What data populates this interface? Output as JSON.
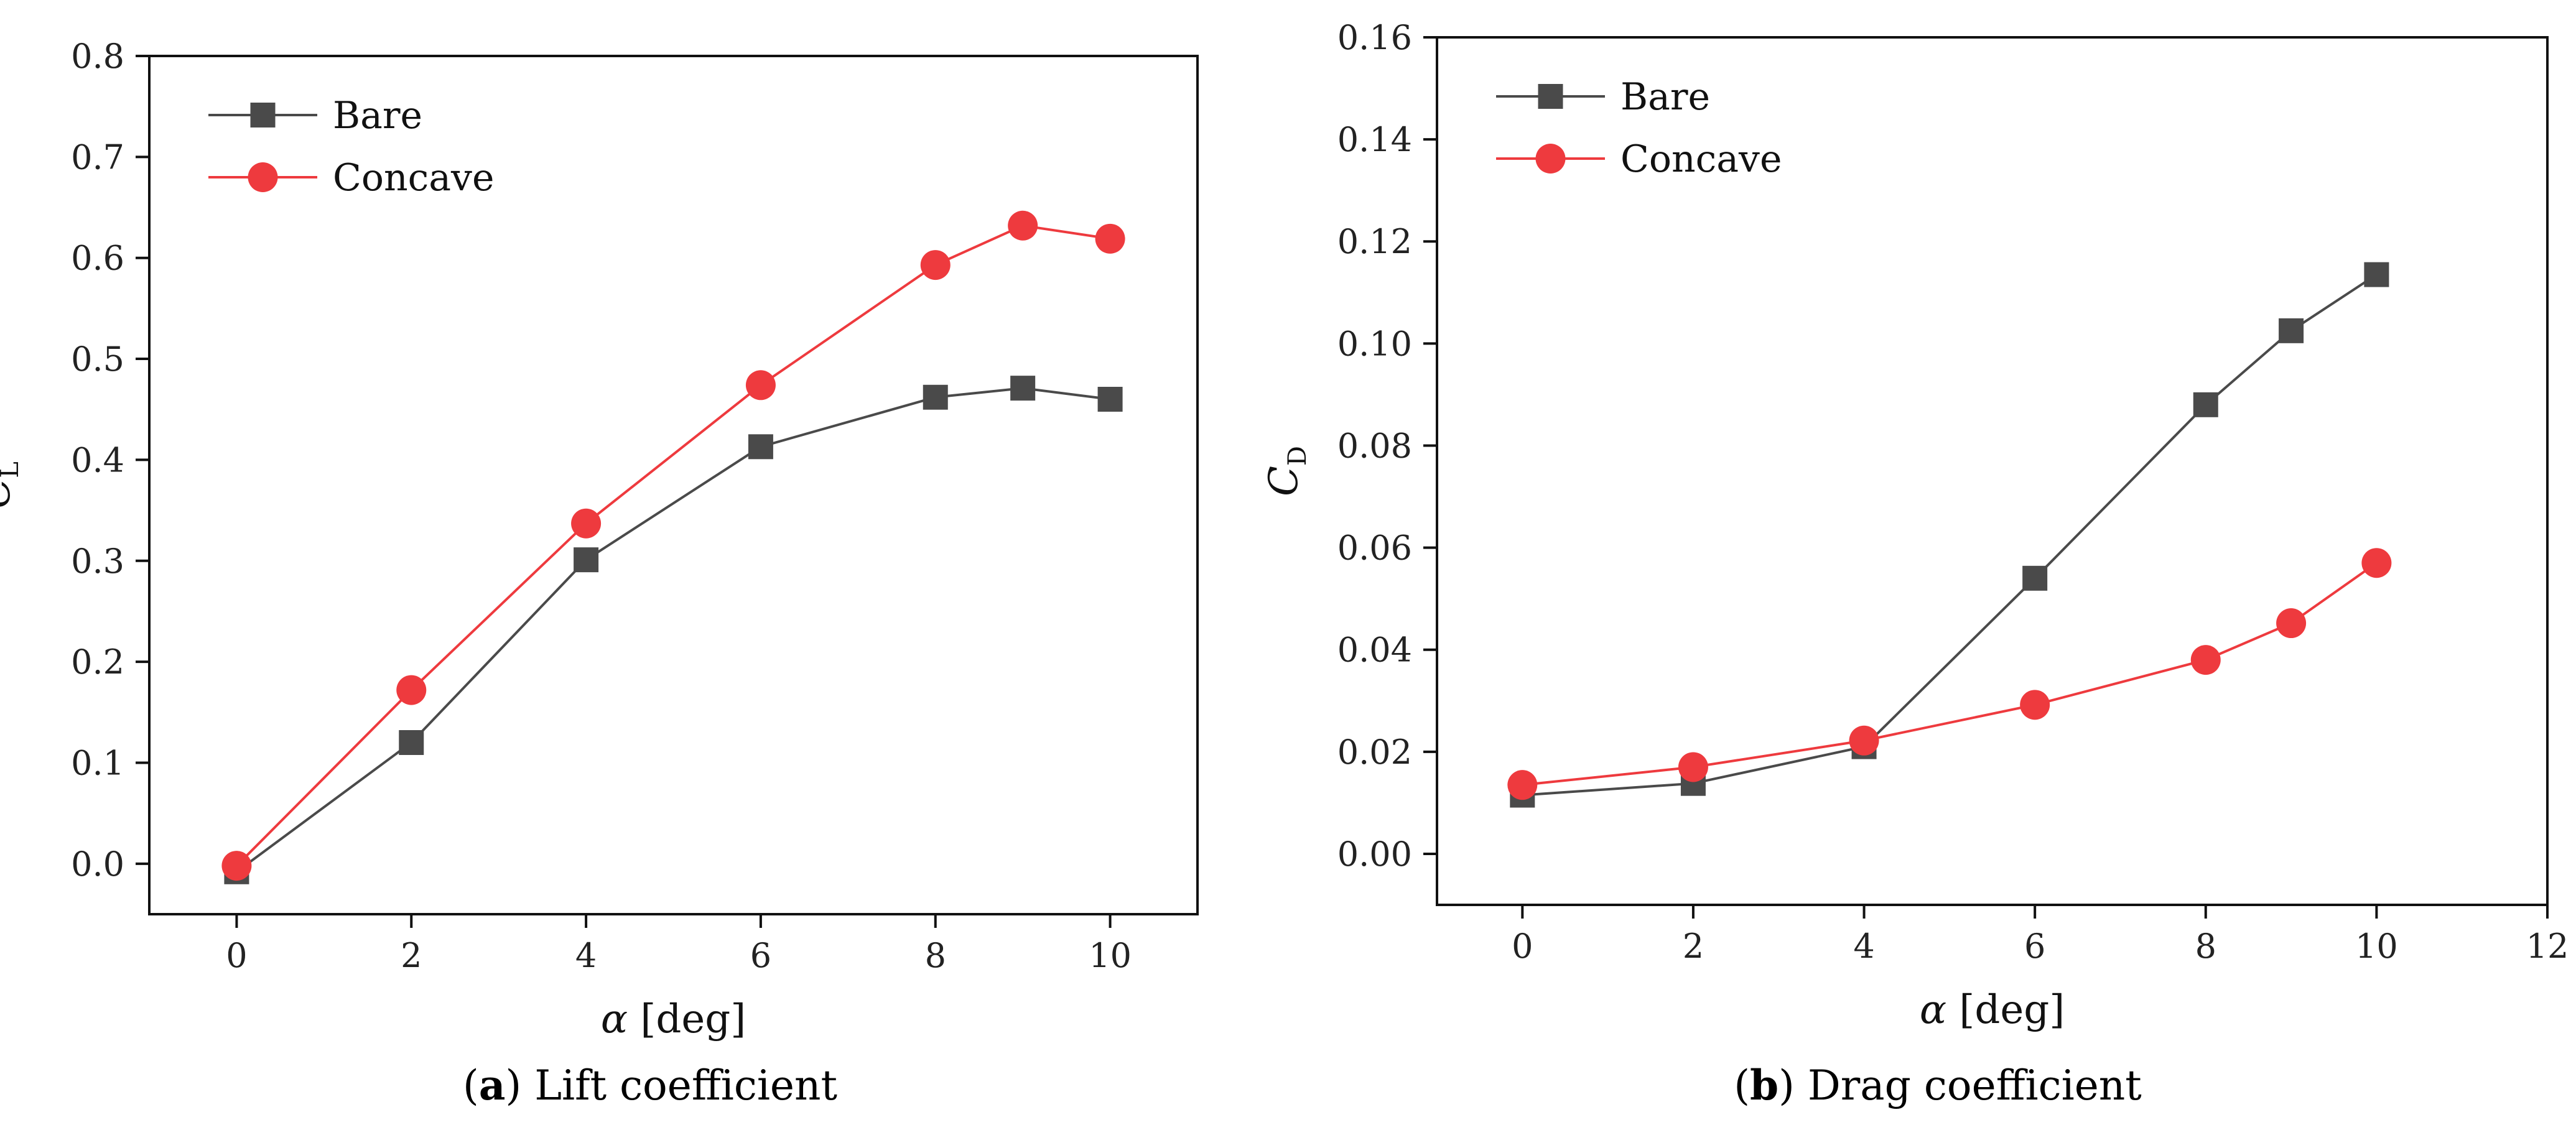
{
  "chart_data": [
    {
      "type": "line",
      "panel": "a",
      "title": "Lift coefficient",
      "caption_letter": "a",
      "caption_text": " Lift coefficient",
      "xlabel_symbol": "α",
      "xlabel_unit": " [deg]",
      "ylabel_main": "C",
      "ylabel_sub": "L",
      "xlim": [
        -1,
        11
      ],
      "ylim": [
        -0.05,
        0.8
      ],
      "xticks": [
        0,
        2,
        4,
        6,
        8,
        10
      ],
      "xtick_labels": [
        "0",
        "2",
        "4",
        "6",
        "8",
        "10"
      ],
      "yticks": [
        0.0,
        0.1,
        0.2,
        0.3,
        0.4,
        0.5,
        0.6,
        0.7,
        0.8
      ],
      "ytick_labels": [
        "0.0",
        "0.1",
        "0.2",
        "0.3",
        "0.4",
        "0.5",
        "0.6",
        "0.7",
        "0.8"
      ],
      "legend_position": "top-left",
      "series": [
        {
          "name": "Bare",
          "color": "#4a4a4a",
          "marker": "square",
          "x": [
            0,
            2,
            4,
            6,
            8,
            9,
            10
          ],
          "values": [
            -0.008,
            0.12,
            0.301,
            0.413,
            0.462,
            0.471,
            0.46
          ]
        },
        {
          "name": "Concave",
          "color": "#ee3a3e",
          "marker": "circle",
          "x": [
            0,
            2,
            4,
            6,
            8,
            9,
            10
          ],
          "values": [
            -0.002,
            0.172,
            0.337,
            0.474,
            0.593,
            0.632,
            0.619
          ]
        }
      ]
    },
    {
      "type": "line",
      "panel": "b",
      "title": "Drag coefficient",
      "caption_letter": "b",
      "caption_text": " Drag coefficient",
      "xlabel_symbol": "α",
      "xlabel_unit": " [deg]",
      "ylabel_main": "C",
      "ylabel_sub": "D",
      "xlim": [
        -1,
        12
      ],
      "ylim": [
        -0.01,
        0.16
      ],
      "xticks": [
        0,
        2,
        4,
        6,
        8,
        10,
        12
      ],
      "xtick_labels": [
        "0",
        "2",
        "4",
        "6",
        "8",
        "10",
        "12"
      ],
      "yticks": [
        0.0,
        0.02,
        0.04,
        0.06,
        0.08,
        0.1,
        0.12,
        0.14,
        0.16
      ],
      "ytick_labels": [
        "0.00",
        "0.02",
        "0.04",
        "0.06",
        "0.08",
        "0.10",
        "0.12",
        "0.14",
        "0.16"
      ],
      "legend_position": "top-left",
      "series": [
        {
          "name": "Bare",
          "color": "#4a4a4a",
          "marker": "square",
          "x": [
            0,
            2,
            4,
            6,
            8,
            9,
            10
          ],
          "values": [
            0.0115,
            0.0138,
            0.021,
            0.054,
            0.088,
            0.1025,
            0.1135
          ]
        },
        {
          "name": "Concave",
          "color": "#ee3a3e",
          "marker": "circle",
          "x": [
            0,
            2,
            4,
            6,
            8,
            9,
            10
          ],
          "values": [
            0.0135,
            0.017,
            0.0222,
            0.0292,
            0.038,
            0.0452,
            0.057
          ]
        }
      ]
    }
  ]
}
